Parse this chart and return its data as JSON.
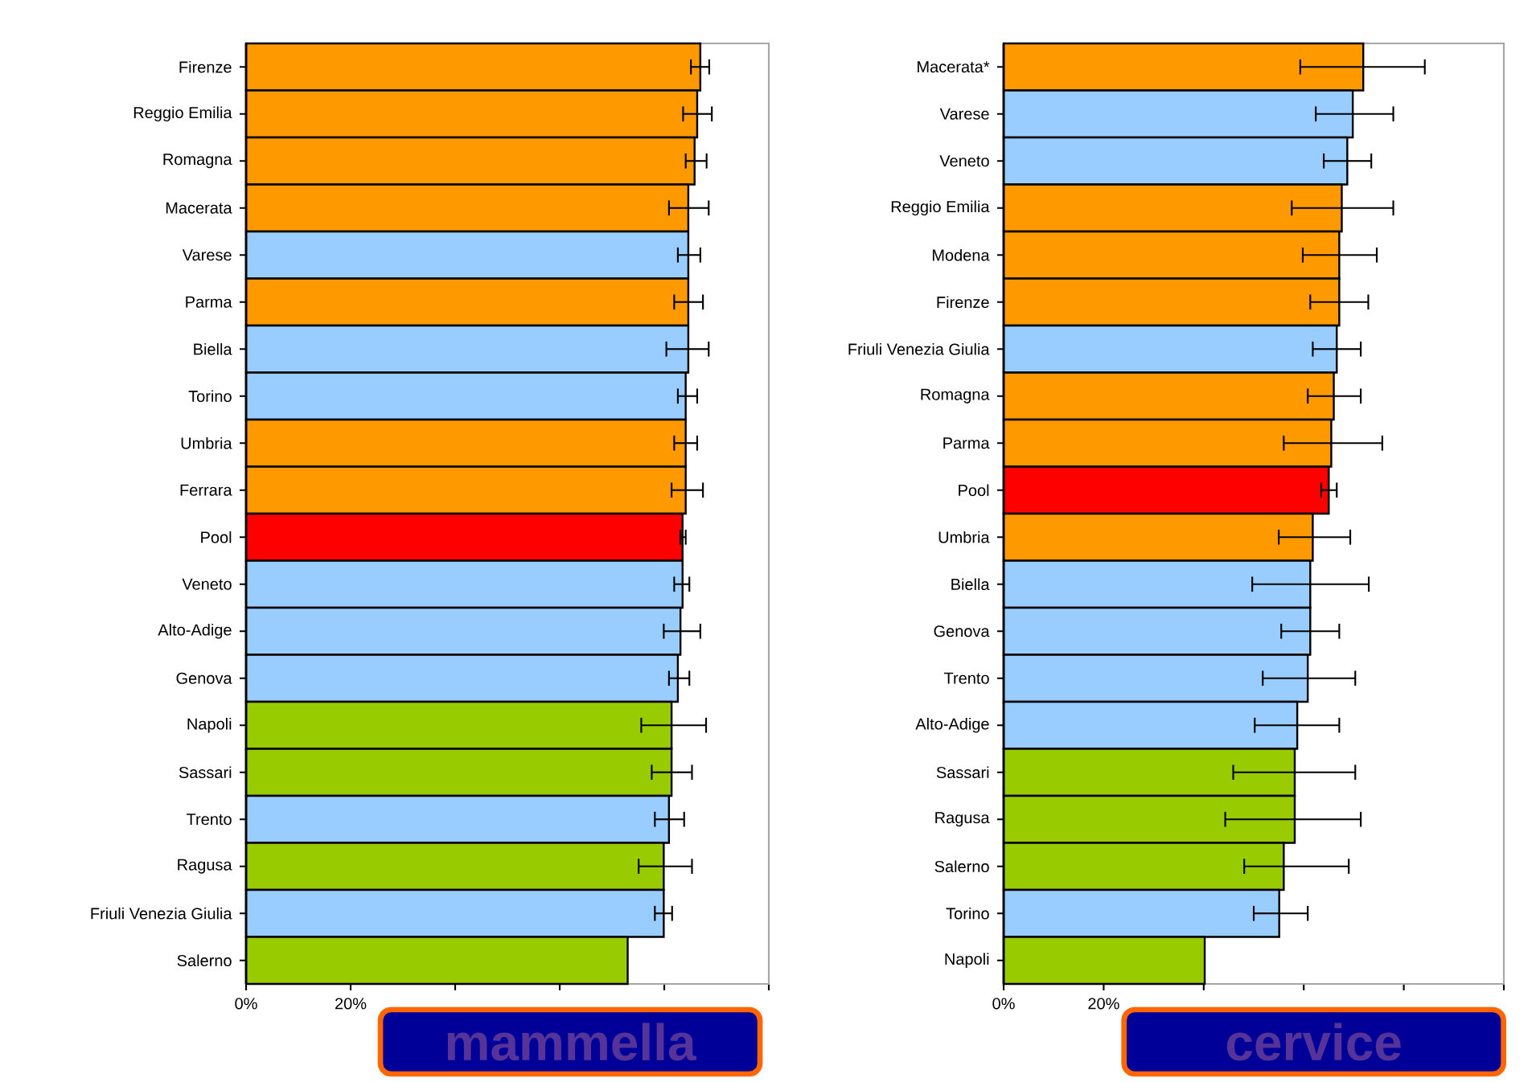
{
  "chart_data": [
    {
      "type": "bar",
      "orientation": "horizontal",
      "annotations": [
        "mammella"
      ],
      "categories": [
        "Firenze",
        "Reggio Emilia",
        "Romagna",
        "Macerata",
        "Varese",
        "Parma",
        "Biella",
        "Torino",
        "Umbria",
        "Ferrara",
        "Pool",
        "Veneto",
        "Alto-Adige",
        "Genova",
        "Napoli",
        "Sassari",
        "Trento",
        "Ragusa",
        "Friuli Venezia Giulia",
        "Salerno"
      ],
      "values": [
        86.9,
        86.3,
        85.8,
        84.6,
        84.6,
        84.6,
        84.6,
        84.1,
        84.1,
        84.1,
        83.5,
        83.5,
        83.1,
        82.6,
        81.4,
        81.4,
        80.9,
        79.9,
        79.9,
        73.0
      ],
      "errors": [
        [
          85.1,
          88.6
        ],
        [
          83.6,
          89.1
        ],
        [
          84.1,
          88.1
        ],
        [
          80.9,
          88.5
        ],
        [
          82.6,
          86.9
        ],
        [
          81.9,
          87.4
        ],
        [
          80.4,
          88.5
        ],
        [
          82.6,
          86.3
        ],
        [
          81.9,
          86.3
        ],
        [
          81.4,
          87.4
        ],
        [
          83.1,
          84.1
        ],
        [
          81.9,
          84.8
        ],
        [
          79.9,
          86.9
        ],
        [
          80.9,
          84.8
        ],
        [
          75.6,
          88.0
        ],
        [
          77.6,
          85.3
        ],
        [
          78.2,
          83.8
        ],
        [
          75.1,
          85.3
        ],
        [
          78.2,
          81.5
        ],
        null
      ],
      "colors": [
        "#ff9900",
        "#ff9900",
        "#ff9900",
        "#ff9900",
        "#99ccff",
        "#ff9900",
        "#99ccff",
        "#99ccff",
        "#ff9900",
        "#ff9900",
        "#ff0000",
        "#99ccff",
        "#99ccff",
        "#99ccff",
        "#99cc00",
        "#99cc00",
        "#99ccff",
        "#99cc00",
        "#99ccff",
        "#99cc00"
      ],
      "xlim": [
        0,
        100
      ],
      "xticks": [
        {
          "value": 0,
          "label": "0%"
        },
        {
          "value": 20,
          "label": "20%"
        },
        {
          "value": 40,
          "label": null
        },
        {
          "value": 60,
          "label": null
        },
        {
          "value": 80,
          "label": null
        },
        {
          "value": 100,
          "label": null
        }
      ]
    },
    {
      "type": "bar",
      "orientation": "horizontal",
      "annotations": [
        "cervice"
      ],
      "categories": [
        "Macerata*",
        "Varese",
        "Veneto",
        "Reggio Emilia",
        "Modena",
        "Firenze",
        "Friuli Venezia Giulia",
        "Romagna",
        "Parma",
        "Pool",
        "Umbria",
        "Biella",
        "Genova",
        "Trento",
        "Alto-Adige",
        "Sassari",
        "Ragusa",
        "Salerno",
        "Torino",
        "Napoli"
      ],
      "values": [
        71.9,
        69.8,
        68.7,
        67.6,
        67.1,
        67.1,
        66.6,
        66.0,
        65.5,
        65.0,
        61.8,
        61.3,
        61.3,
        60.8,
        58.7,
        58.2,
        58.2,
        56.0,
        55.1,
        40.2
      ],
      "errors": [
        [
          59.3,
          84.2
        ],
        [
          62.4,
          77.9
        ],
        [
          64.0,
          73.5
        ],
        [
          57.6,
          77.9
        ],
        [
          59.8,
          74.6
        ],
        [
          61.3,
          72.9
        ],
        [
          61.8,
          71.4
        ],
        [
          60.8,
          71.4
        ],
        [
          56.0,
          75.7
        ],
        [
          63.5,
          66.6
        ],
        [
          55.0,
          69.3
        ],
        [
          49.7,
          73.0
        ],
        [
          55.5,
          67.1
        ],
        [
          51.8,
          70.3
        ],
        [
          50.2,
          67.1
        ],
        [
          45.9,
          70.3
        ],
        [
          44.3,
          71.4
        ],
        [
          48.1,
          69.0
        ],
        [
          50.0,
          60.8
        ],
        null
      ],
      "colors": [
        "#ff9900",
        "#99ccff",
        "#99ccff",
        "#ff9900",
        "#ff9900",
        "#ff9900",
        "#99ccff",
        "#ff9900",
        "#ff9900",
        "#ff0000",
        "#ff9900",
        "#99ccff",
        "#99ccff",
        "#99ccff",
        "#99ccff",
        "#99cc00",
        "#99cc00",
        "#99cc00",
        "#99ccff",
        "#99cc00"
      ],
      "xlim": [
        0,
        100
      ],
      "xticks": [
        {
          "value": 0,
          "label": "0%"
        },
        {
          "value": 20,
          "label": "20%"
        },
        {
          "value": 40,
          "label": null
        },
        {
          "value": 60,
          "label": null
        },
        {
          "value": 80,
          "label": null
        },
        {
          "value": 100,
          "label": null
        }
      ]
    }
  ]
}
